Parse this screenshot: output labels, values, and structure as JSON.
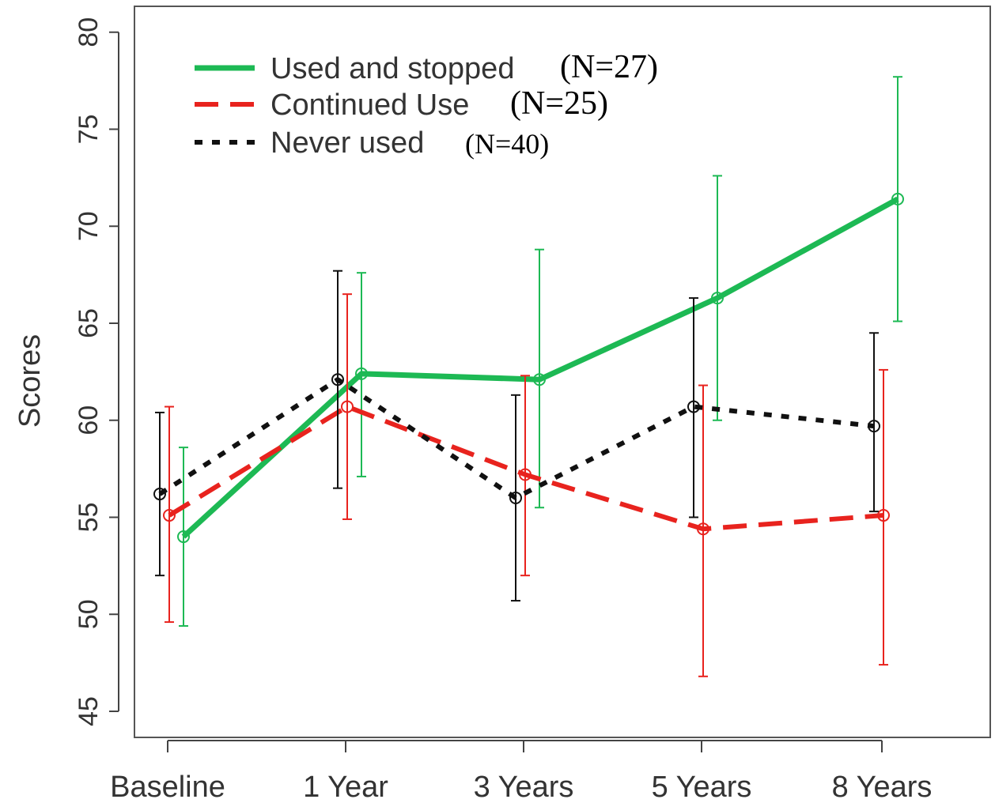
{
  "chart_data": {
    "type": "line",
    "title": "",
    "xlabel": "",
    "ylabel": "Scores",
    "categories": [
      "Baseline",
      "1 Year",
      "3 Years",
      "5 Years",
      "8 Years"
    ],
    "yticks": [
      "45",
      "50",
      "55",
      "60",
      "65",
      "70",
      "75",
      "80"
    ],
    "ylim": [
      43.8,
      81.5
    ],
    "grid": false,
    "legend_position": "top-left",
    "series": [
      {
        "name": "Used and stopped",
        "n_label": "(N=27)",
        "color": "#1db954",
        "style": "solid",
        "values": [
          54.0,
          62.4,
          62.1,
          66.3,
          71.4
        ],
        "err_low": [
          49.4,
          57.1,
          55.5,
          60.0,
          65.1
        ],
        "err_high": [
          58.6,
          67.6,
          68.8,
          72.6,
          77.7
        ]
      },
      {
        "name": "Continued Use",
        "n_label": "(N=25)",
        "color": "#e8231e",
        "style": "dashed",
        "values": [
          55.1,
          60.7,
          57.2,
          54.4,
          55.1
        ],
        "err_low": [
          49.6,
          54.9,
          52.0,
          46.8,
          47.4
        ],
        "err_high": [
          60.7,
          66.5,
          62.3,
          61.8,
          62.6
        ]
      },
      {
        "name": "Never used",
        "n_label": "(N=40)",
        "color": "#111111",
        "style": "dotted",
        "values": [
          56.2,
          62.1,
          56.0,
          60.7,
          59.7
        ],
        "err_low": [
          52.0,
          56.5,
          50.7,
          55.0,
          55.3
        ],
        "err_high": [
          60.4,
          67.7,
          61.3,
          66.3,
          64.5
        ]
      }
    ]
  }
}
